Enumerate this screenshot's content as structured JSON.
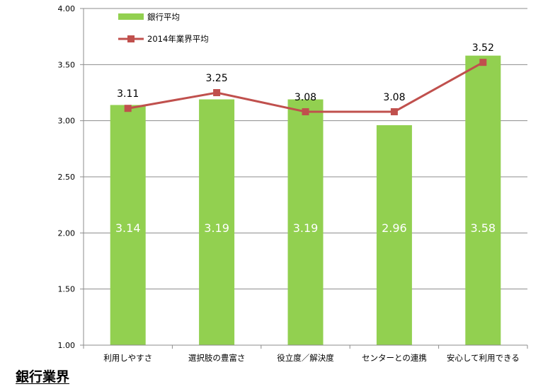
{
  "chart_data": {
    "type": "bar",
    "categories": [
      "利用しやすさ",
      "選択肢の豊富さ",
      "役立度／解決度",
      "センターとの連携",
      "安心して利用できる"
    ],
    "series": [
      {
        "name": "銀行平均",
        "type": "bar",
        "values": [
          3.14,
          3.19,
          3.19,
          2.96,
          3.58
        ],
        "labels": [
          "3.14",
          "3.19",
          "3.19",
          "2.96",
          "3.58"
        ]
      },
      {
        "name": "2014年業界平均",
        "type": "line",
        "values": [
          3.11,
          3.25,
          3.08,
          3.08,
          3.52
        ],
        "labels": [
          "3.11",
          "3.25",
          "3.08",
          "3.08",
          "3.52"
        ]
      }
    ],
    "ylim": [
      1.0,
      4.0
    ],
    "yticks": [
      "1.00",
      "1.50",
      "2.00",
      "2.50",
      "3.00",
      "3.50",
      "4.00"
    ],
    "grid": true,
    "legend_position": "top-left",
    "colors": {
      "bar": "#92D050",
      "line": "#C0504D",
      "bar_label": "#ffffff",
      "grid": "#8C8C8C"
    }
  },
  "footer": {
    "title": "銀行業界"
  }
}
